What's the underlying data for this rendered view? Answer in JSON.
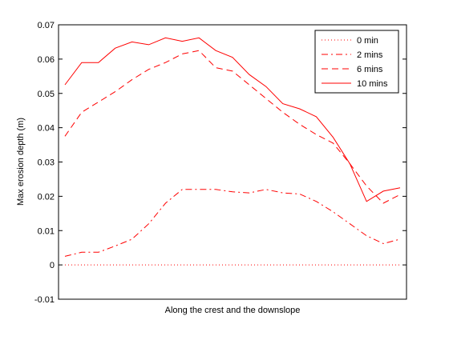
{
  "chart_data": {
    "type": "line",
    "xlabel": "Along the crest and the downslope",
    "ylabel": "Max erosion depth  (m)",
    "ylim": [
      -0.01,
      0.07
    ],
    "yticks": [
      "-0.01",
      "0",
      "0.01",
      "0.02",
      "0.03",
      "0.04",
      "0.05",
      "0.06",
      "0.07"
    ],
    "ytick_values": [
      -0.01,
      0,
      0.01,
      0.02,
      0.03,
      0.04,
      0.05,
      0.06,
      0.07
    ],
    "x": [
      1,
      2,
      3,
      4,
      5,
      6,
      7,
      8,
      9,
      10,
      11,
      12,
      13,
      14,
      15,
      16,
      17,
      18,
      19,
      20,
      21
    ],
    "xlim": [
      1,
      21
    ],
    "grid": false,
    "legend_position": "top-right",
    "line_color": "#ff0000",
    "series": [
      {
        "name": "0 min",
        "dash": "dotted",
        "values": [
          0,
          0,
          0,
          0,
          0,
          0,
          0,
          0,
          0,
          0,
          0,
          0,
          0,
          0,
          0,
          0,
          0,
          0,
          0,
          0,
          0
        ]
      },
      {
        "name": "2 mins",
        "dash": "dashdot",
        "values": [
          0.0025,
          0.0037,
          0.0037,
          0.0055,
          0.0075,
          0.012,
          0.018,
          0.022,
          0.022,
          0.022,
          0.0213,
          0.021,
          0.022,
          0.021,
          0.0207,
          0.0185,
          0.0155,
          0.012,
          0.0085,
          0.0062,
          0.0075
        ]
      },
      {
        "name": "6 mins",
        "dash": "dashed",
        "values": [
          0.0375,
          0.0445,
          0.0475,
          0.0505,
          0.054,
          0.057,
          0.059,
          0.0615,
          0.0625,
          0.0575,
          0.0565,
          0.0525,
          0.0485,
          0.0445,
          0.041,
          0.038,
          0.0355,
          0.0295,
          0.023,
          0.018,
          0.0205
        ]
      },
      {
        "name": "10 mins",
        "dash": "solid",
        "values": [
          0.0525,
          0.059,
          0.059,
          0.0632,
          0.065,
          0.0642,
          0.0662,
          0.0652,
          0.0662,
          0.0625,
          0.0605,
          0.0555,
          0.052,
          0.047,
          0.0455,
          0.0432,
          0.0372,
          0.0295,
          0.0185,
          0.0215,
          0.0225
        ]
      }
    ]
  }
}
